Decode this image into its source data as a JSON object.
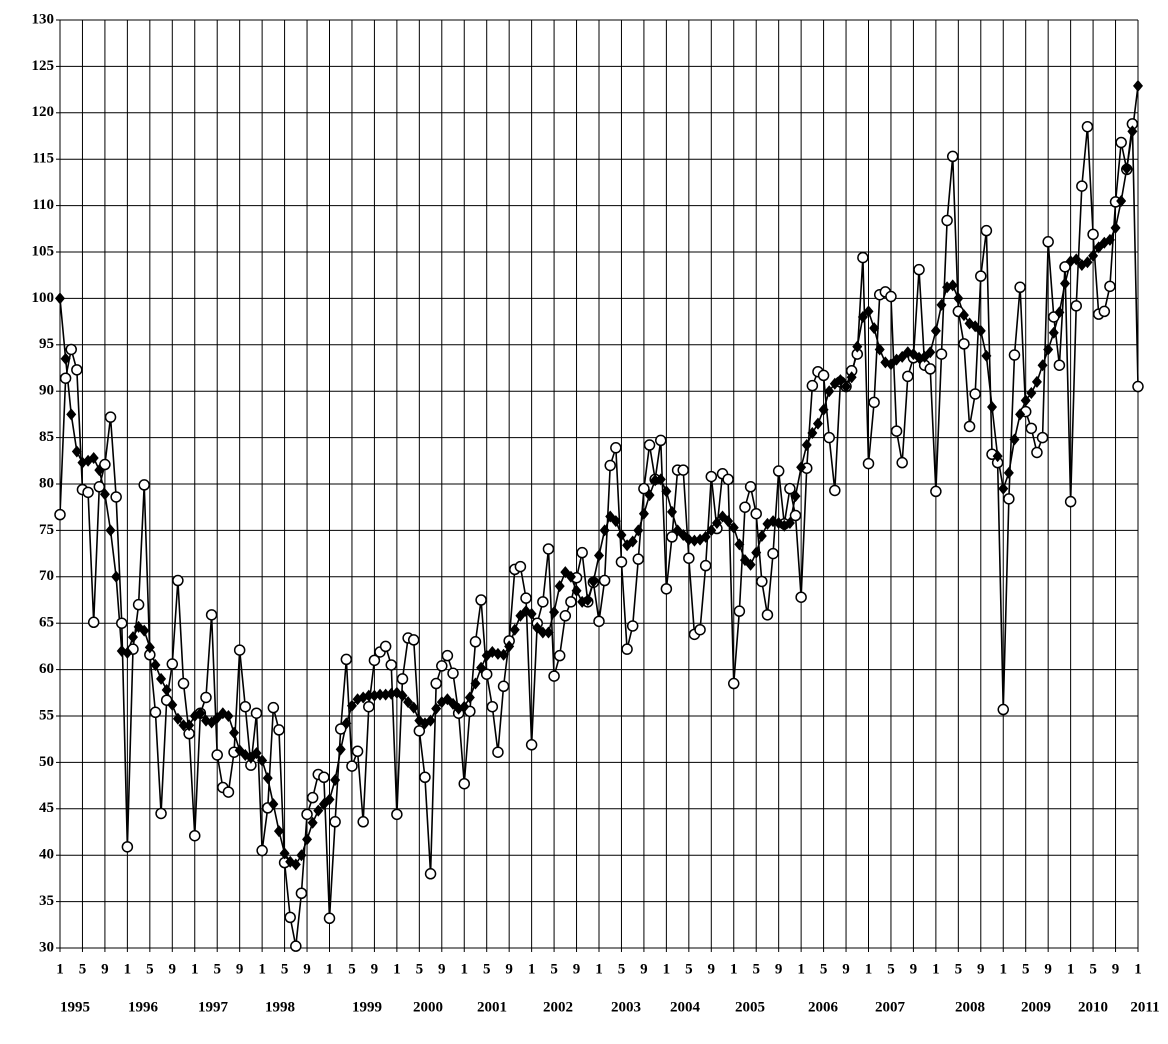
{
  "chart_data": {
    "type": "line",
    "categories": [
      "1",
      null,
      null,
      null,
      "5",
      null,
      null,
      null,
      "9",
      null,
      null,
      null,
      "1",
      null,
      null,
      null,
      "5",
      null,
      null,
      null,
      "9",
      null,
      null,
      null,
      "1",
      null,
      null,
      null,
      "5",
      null,
      null,
      null,
      "9",
      null,
      null,
      null,
      "1",
      null,
      null,
      null,
      "5",
      null,
      null,
      null,
      "9",
      null,
      null,
      null,
      "1",
      null,
      null,
      null,
      "5",
      null,
      null,
      null,
      "9",
      null,
      null,
      null,
      "1",
      null,
      null,
      null,
      "5",
      null,
      null,
      null,
      "9",
      null,
      null,
      null,
      "1",
      null,
      null,
      null,
      "5",
      null,
      null,
      null,
      "9",
      null,
      null,
      null,
      "1",
      null,
      null,
      null,
      "5",
      null,
      null,
      null,
      "9",
      null,
      null,
      null,
      "1",
      null,
      null,
      null,
      "5",
      null,
      null,
      null,
      "9",
      null,
      null,
      null,
      "1",
      null,
      null,
      null,
      "5",
      null,
      null,
      null,
      "9",
      null,
      null,
      null,
      "1",
      null,
      null,
      null,
      "5",
      null,
      null,
      null,
      "9",
      null,
      null,
      null,
      "1",
      null,
      null,
      null,
      "5",
      null,
      null,
      null,
      "9",
      null,
      null,
      null,
      "1",
      null,
      null,
      null,
      "5",
      null,
      null,
      null,
      "9",
      null,
      null,
      null,
      "1",
      null,
      null,
      null,
      "5",
      null,
      null,
      null,
      "9",
      null,
      null,
      null,
      "1",
      null,
      null,
      null,
      "5",
      null,
      null,
      null,
      "9",
      null,
      null,
      null,
      "1",
      null,
      null,
      null,
      "5",
      null,
      null,
      null,
      "9",
      null,
      null,
      null,
      "1"
    ],
    "year_labels": [
      "1995",
      "1996",
      "1997",
      "1998",
      "1999",
      "2000",
      "2001",
      "2002",
      "2003",
      "2004",
      "2005",
      "2006",
      "2007",
      "2008",
      "2009",
      "2010",
      "2011"
    ],
    "series": [
      {
        "color": "#000000",
        "marker": "circle",
        "values": [
          76.7,
          91.4,
          94.5,
          92.3,
          79.4,
          79.1,
          65.1,
          79.7,
          82.1,
          87.2,
          78.6,
          65.0,
          40.9,
          62.2,
          67.0,
          79.9,
          61.6,
          55.4,
          44.5,
          56.7,
          60.6,
          69.6,
          58.5,
          53.1,
          42.1,
          55.3,
          57.0,
          65.9,
          50.8,
          47.3,
          46.8,
          51.1,
          62.1,
          56.0,
          49.7,
          55.3,
          40.5,
          45.1,
          55.9,
          53.5,
          39.2,
          33.3,
          30.2,
          35.9,
          44.4,
          46.2,
          48.7,
          48.4,
          33.2,
          43.6,
          53.6,
          61.1,
          49.6,
          51.2,
          43.6,
          56.0,
          61.0,
          61.9,
          62.5,
          60.5,
          44.4,
          59.0,
          63.4,
          63.2,
          53.4,
          48.4,
          38.0,
          58.5,
          60.4,
          61.5,
          59.6,
          55.3,
          47.7,
          55.5,
          63.0,
          67.5,
          59.5,
          56.0,
          51.1,
          58.2,
          63.1,
          70.8,
          71.1,
          67.7,
          51.9,
          65.0,
          67.3,
          73.0,
          59.3,
          61.5,
          65.8,
          67.3,
          69.9,
          72.6,
          67.3,
          69.4,
          65.2,
          69.6,
          82.0,
          83.9,
          71.6,
          62.2,
          64.7,
          71.9,
          79.5,
          84.2,
          80.5,
          84.7,
          68.7,
          74.3,
          81.5,
          81.5,
          72.0,
          63.8,
          64.3,
          71.2,
          80.8,
          75.2,
          81.1,
          80.5,
          58.5,
          66.3,
          77.5,
          79.7,
          76.8,
          69.5,
          65.9,
          72.5,
          81.4,
          75.7,
          79.5,
          76.6,
          67.8,
          81.7,
          90.6,
          92.1,
          91.7,
          85.0,
          79.3,
          91.0,
          90.5,
          92.2,
          94.0,
          104.4,
          82.2,
          88.8,
          100.4,
          100.7,
          100.2,
          85.7,
          82.3,
          91.6,
          93.6,
          103.1,
          92.8,
          92.4,
          79.2,
          94.0,
          108.4,
          115.3,
          98.6,
          95.1,
          86.2,
          89.7,
          102.4,
          107.3,
          83.2,
          82.3,
          55.7,
          78.4,
          93.9,
          101.2,
          87.8,
          86.0,
          83.4,
          85.0,
          106.1,
          98.0,
          92.8,
          103.4,
          78.1,
          99.2,
          112.1,
          118.5,
          106.9,
          98.3,
          98.6,
          101.3,
          110.4,
          116.8,
          113.9,
          118.8,
          90.5
        ]
      },
      {
        "color": "#000000",
        "marker": "diamond",
        "values": [
          100,
          93.5,
          87.5,
          83.5,
          82.3,
          82.5,
          82.8,
          81.5,
          78.9,
          75.0,
          70.0,
          62.0,
          61.8,
          63.5,
          64.6,
          64.2,
          62.4,
          60.5,
          59.0,
          57.8,
          56.2,
          54.7,
          54.0,
          54.0,
          55.0,
          55.3,
          54.5,
          54.3,
          54.8,
          55.3,
          55.0,
          53.2,
          51.3,
          50.8,
          50.5,
          51.0,
          50.2,
          48.3,
          45.5,
          42.6,
          40.2,
          39.3,
          39.0,
          40.0,
          41.7,
          43.5,
          44.8,
          45.5,
          46.0,
          48.1,
          51.4,
          54.2,
          56.1,
          56.8,
          57.0,
          57.2,
          57.2,
          57.3,
          57.3,
          57.4,
          57.5,
          57.2,
          56.5,
          55.9,
          54.5,
          54.2,
          54.5,
          55.8,
          56.5,
          56.8,
          56.3,
          55.8,
          56.0,
          57.0,
          58.5,
          60.2,
          61.5,
          61.9,
          61.7,
          61.6,
          62.5,
          64.3,
          65.8,
          66.3,
          66.0,
          64.5,
          64.0,
          64.0,
          66.2,
          69.0,
          70.5,
          70.0,
          68.5,
          67.3,
          67.5,
          69.5,
          72.3,
          75.0,
          76.5,
          76.0,
          74.5,
          73.4,
          73.8,
          75.0,
          76.8,
          78.8,
          80.4,
          80.5,
          79.2,
          77.0,
          75.0,
          74.5,
          74.0,
          73.9,
          74.0,
          74.3,
          75.0,
          75.8,
          76.5,
          76.0,
          75.3,
          73.5,
          71.8,
          71.3,
          72.6,
          74.4,
          75.7,
          76.0,
          75.8,
          75.5,
          75.8,
          78.7,
          81.8,
          84.2,
          85.5,
          86.5,
          88.0,
          90.0,
          90.8,
          91.2,
          90.5,
          91.5,
          94.8,
          98.0,
          98.6,
          96.8,
          94.5,
          93.1,
          92.9,
          93.4,
          93.7,
          94.2,
          94.0,
          93.6,
          93.7,
          94.2,
          96.5,
          99.3,
          101.2,
          101.4,
          100.0,
          98.2,
          97.3,
          97.0,
          96.5,
          93.8,
          88.3,
          83.0,
          79.5,
          81.2,
          84.8,
          87.5,
          89.0,
          89.8,
          91.0,
          92.8,
          94.5,
          96.3,
          98.5,
          101.6,
          104.0,
          104.2,
          103.6,
          103.9,
          104.6,
          105.5,
          106.0,
          106.3,
          107.6,
          110.5,
          114.0,
          118.0,
          122.9
        ]
      }
    ],
    "ylim": [
      30,
      130
    ],
    "yticks": [
      30,
      35,
      40,
      45,
      50,
      55,
      60,
      65,
      70,
      75,
      80,
      85,
      90,
      95,
      100,
      105,
      110,
      115,
      120,
      125,
      130
    ],
    "grid": true
  }
}
